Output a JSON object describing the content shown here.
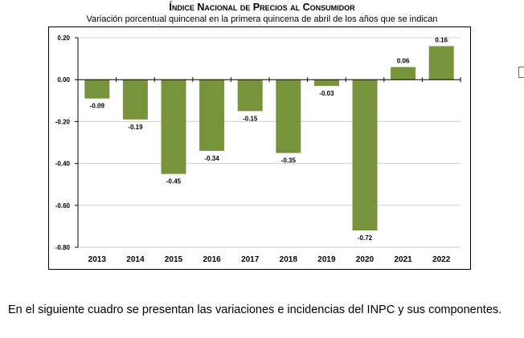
{
  "chart_data": {
    "type": "bar",
    "title": "Índice Nacional de Precios al Consumidor",
    "subtitle": "Variación porcentual quincenal en la primera quincena de abril de los años que se indican",
    "categories": [
      "2013",
      "2014",
      "2015",
      "2016",
      "2017",
      "2018",
      "2019",
      "2020",
      "2021",
      "2022"
    ],
    "values": [
      -0.09,
      -0.19,
      -0.45,
      -0.34,
      -0.15,
      -0.35,
      -0.03,
      -0.72,
      0.06,
      0.16
    ],
    "value_labels": [
      "-0.09",
      "-0.19",
      "-0.45",
      "-0.34",
      "-0.15",
      "-0.35",
      "-0.03",
      "-0.72",
      "0.06",
      "0.16"
    ],
    "y_ticks": [
      0.2,
      0.0,
      -0.2,
      -0.4,
      -0.6,
      -0.8
    ],
    "y_tick_labels": [
      "0.20",
      "0.00",
      "-0.20",
      "-0.40",
      "-0.60",
      "-0.80"
    ],
    "ylim": [
      -0.8,
      0.2
    ],
    "xlabel": "",
    "ylabel": "",
    "grid": true,
    "bar_color": "#77933c",
    "grid_color": "#d0d0d0"
  },
  "note": "En el siguiente cuadro se presentan las variaciones e incidencias del INPC y sus componentes."
}
